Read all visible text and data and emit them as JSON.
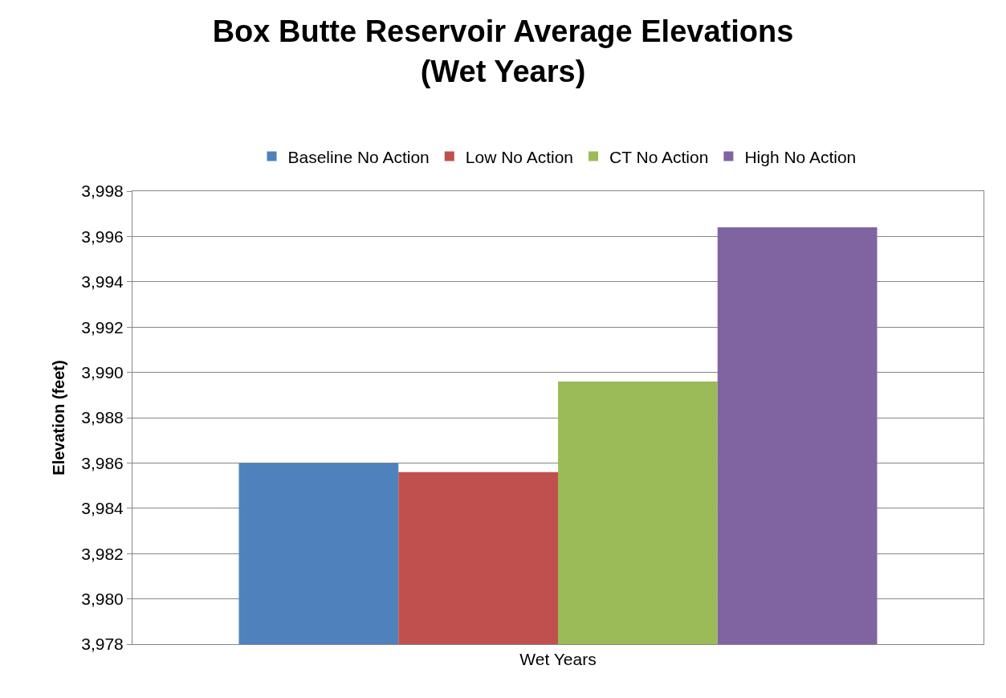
{
  "chart_data": {
    "type": "bar",
    "title": "Box Butte Reservoir Average Elevations\n(Wet Years)",
    "ylabel": "Elevation (feet)",
    "categories": [
      "Wet Years"
    ],
    "series": [
      {
        "name": "Baseline No Action",
        "color": "#4f81bd",
        "values": [
          3986.0
        ]
      },
      {
        "name": "Low No Action",
        "color": "#c0504d",
        "values": [
          3985.6
        ]
      },
      {
        "name": "CT No Action",
        "color": "#9bbb59",
        "values": [
          3989.6
        ]
      },
      {
        "name": "High No Action",
        "color": "#8064a2",
        "values": [
          3996.4
        ]
      }
    ],
    "ylim": [
      3978,
      3998
    ],
    "yticks": [
      {
        "value": 3978,
        "label": "3,978"
      },
      {
        "value": 3980,
        "label": "3,980"
      },
      {
        "value": 3982,
        "label": "3,982"
      },
      {
        "value": 3984,
        "label": "3,984"
      },
      {
        "value": 3986,
        "label": "3,986"
      },
      {
        "value": 3988,
        "label": "3,988"
      },
      {
        "value": 3990,
        "label": "3,990"
      },
      {
        "value": 3992,
        "label": "3,992"
      },
      {
        "value": 3994,
        "label": "3,994"
      },
      {
        "value": 3996,
        "label": "3,996"
      },
      {
        "value": 3998,
        "label": "3,998"
      }
    ],
    "grid": "y",
    "legend": "top"
  }
}
